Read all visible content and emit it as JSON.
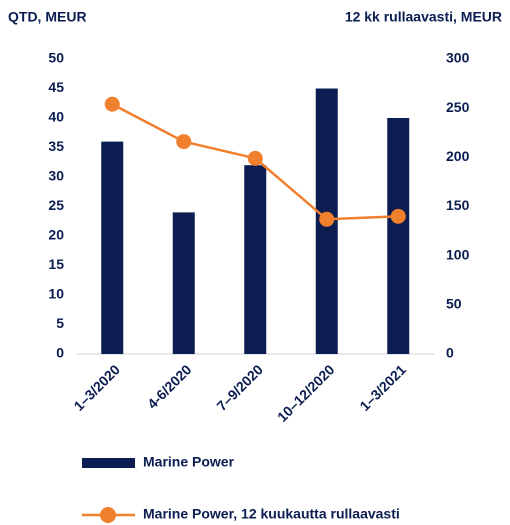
{
  "chart_data": {
    "type": "bar",
    "y_label": "QTD, MEUR",
    "y2_label": "12 kk rullaavasti, MEUR",
    "categories": [
      "1–3/2020",
      "4-6/2020",
      "7–9/2020",
      "10–12/2020",
      "1–3/2021"
    ],
    "series": [
      {
        "name": "Marine Power",
        "type": "bar",
        "color": "#0b1d51",
        "values": [
          36,
          24,
          32,
          45,
          40
        ]
      },
      {
        "name": "Marine Power, 12 kuukautta rullaavasti",
        "type": "line",
        "axis": "y2",
        "color": "#f07f2e",
        "values": [
          254,
          216,
          199,
          137,
          140
        ]
      }
    ],
    "ylim": [
      0,
      50
    ],
    "yticks": [
      0,
      5,
      10,
      15,
      20,
      25,
      30,
      35,
      40,
      45,
      50
    ],
    "y2lim": [
      0,
      300
    ],
    "y2ticks": [
      0,
      50,
      100,
      150,
      200,
      250,
      300
    ],
    "grid": false
  }
}
